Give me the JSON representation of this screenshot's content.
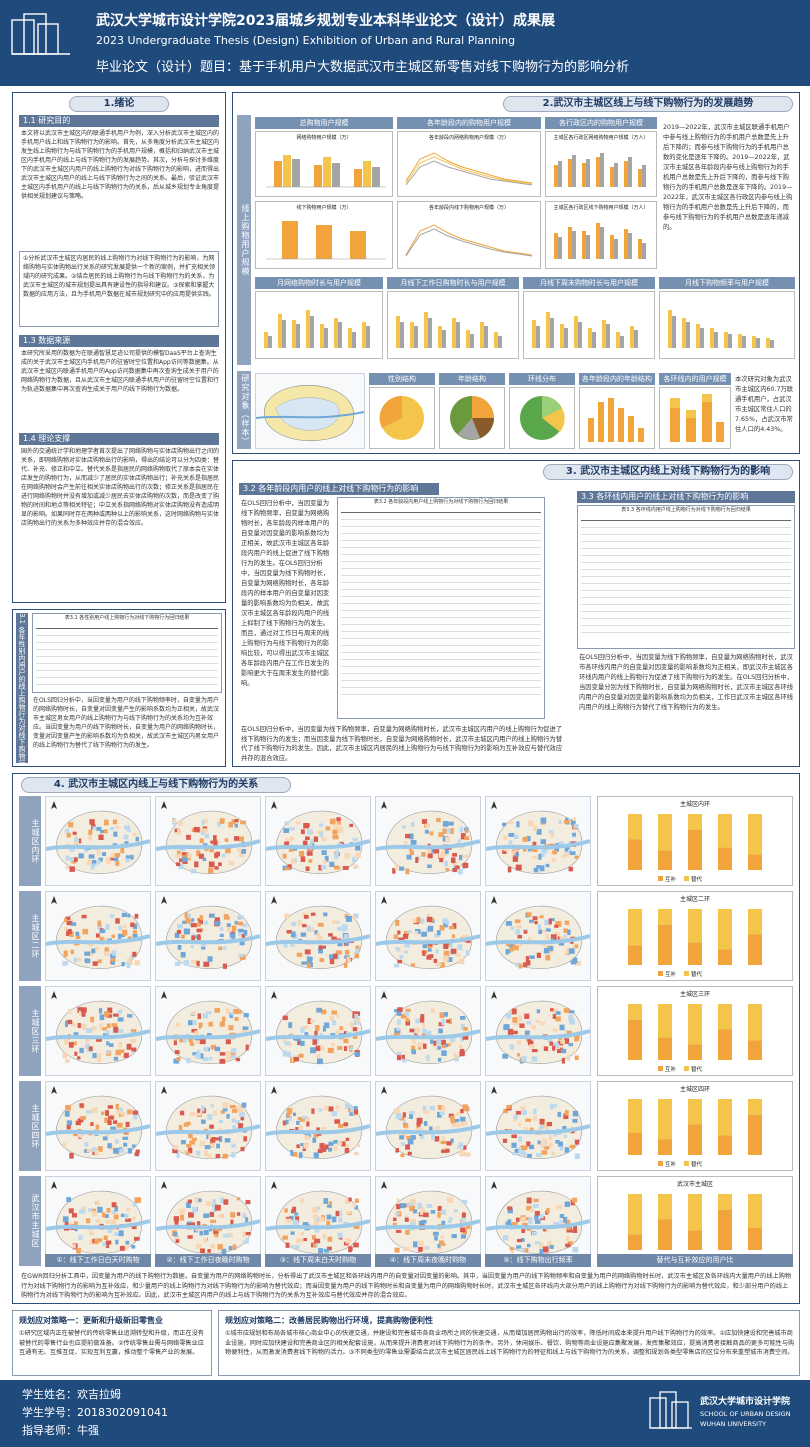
{
  "header": {
    "title": "武汉大学城市设计学院2023届城乡规划专业本科毕业论文（设计）成果展",
    "subtitle": "2023 Undergraduate Thesis (Design) Exhibition of Urban and Rural Planning",
    "topic": "毕业论文（设计）题目：基于手机用户大数据武汉市主城区新零售对线下购物行为的影响分析"
  },
  "s1": {
    "title": "1.绪论",
    "tab_purpose": "1.1 研究目的",
    "purpose_text": "本文将以武汉市主城区内的联通手机用户为例，深入分析武汉市主城区内的手机用户线上和线下购物行为的影响。首先，从多角度分析武汉市主城区内发生线上购物行为与线下购物行为的手机用户规模，概括和归纳武汉市主城区内手机用户的线上与线下购物行为的发展趋势。其次，分析与探讨多维度下的武汉市主城区内用户的线上购物行为对线下购物行为的影响，进而得出武汉市主城区内用户的线上与线下购物行为之间的关系。最后，驳证武汉市主城区内手机用户的线上与线下购物行为的关系，后从城乡规划专业角度提供相关规划建议与策略。",
    "purpose_list": "①分析武汉市主城区内居民的线上购物行为对线下购物行为的影响，为网络购物与实体购物出行关系的研究发展提供一个新的案例，并扩充相关领域内的研究成果。②结合居民的线上购物行为与线下购物行为的关系，为武汉市主城区的城市规划提出具有建设性的指导和建议。③探索和掌握大数据的应用方法，且为手机用户数据在城市规划研究中的应用提供实践。",
    "tab_data": "1.3 数据来源",
    "data_text": "本研究所采用的数据为在联通智慧足迹公司提供的模智DaaS平台上查询生成的关于武汉市主城区内手机用户的驻留时空位置和App访问等数据集。从武汉市主城区内联通手机用户的App访问数据集中再次查询生成关于用户的网络购物行为数据，且从武汉市主城区内联通手机用户的驻留时空位置和行为轨迹数据集中再次查询生成关于用户的线下购物行为数据。",
    "tab_theory": "1.4 理论支撑",
    "theory_text": "国外的交通统计学和地理学者首次提出了网络购物与实体店购物出行之间的关系，即网络购物对实体店购物出行的影响，得出的结论可以分为四类：替代、补充、修正和中立。替代关系是指居民的网络购物取代了原本会在实体店发生的购物行为，从而减少了居民的实体店购物出行；补充关系是指居民在网络购物时会产生前往相关实体店购物出行的次数；修正关系是指居民在进行网络购物时并没有增加或减少居民去实体店购物的次数，而是改变了购物的时间和地点等相关特征；中立关系指网络购物对实体店购物没有造成明显的影响。如果同时存在两种或两种以上的影响关系，这时网络购物与实体店购物出行的关系为多种效应并存的混合效应。"
  },
  "s31": {
    "tab": "3.1 各年性别内用户的线上购物行为对线下购物行为的影响",
    "caption": "表3.1 各性别用户线上购物行为对线下购物行为回归结果",
    "text": "在OLS回归分析中，当因变量为用户的线下购物频率时，自变量为用户的网络购物时长，自变量对因变量产生的影响系数均为正相关，故武汉市主城区男女用户的线上购物行为与线下购物行为的关系均为互补效应。当因变量为用户的线下购物时长，自变量为用户的网络购物时长，变量对因变量产生的影响系数均为负相关，故武汉市主城区内男女用户的线上购物行为替代了线下购物行为的发生。"
  },
  "s2": {
    "title": "2.武汉市主城区线上与线下购物行为的发展趋势",
    "vlabel": "线上购物用户规模",
    "chart_heads": [
      "总购物用户规模",
      "各年龄段内的购物用户规模",
      "各行政区内的购物用户规模"
    ],
    "line_heads": [
      "月网络购物时长与用户规模",
      "月线下工作日购物时长与用户规模",
      "月线下周末购物时长与用户规模",
      "月线下购物频率与用户规模"
    ],
    "chart_titles": [
      "网络购物用户规模（万）",
      "各年龄段内网络购物用户规模（万）",
      "主城区各行政区网络购物用户规模（万人）",
      "线下购物用户规模（万）",
      "各年龄段内线下购物用户规模（万）",
      "主城区各行政区线下购物用户规模（万人）"
    ],
    "trend_text": "2019—2022年，武汉市主城区联通手机用户中参与线上购物行为的手机用户总数是先上升后下降的；而参与线下购物行为的手机用户总数的变化是逐年下降的。2019—2022年，武汉市主城区各年龄段内参与线上购物行为的手机用户总数是先上升后下降的，而参与线下购物行为的手机用户总数是逐年下降的。2019—2022年，武汉市主城区各行政区内参与线上购物行为的手机用户总数是先上升后下降的，而参与线下购物行为的手机用户总数是逐年递减的。",
    "sample_vlabel": "研究对象（样本）",
    "sample_heads": [
      "性别结构",
      "年龄结构",
      "环线分布",
      "各年龄段内的年龄结构",
      "各环线内的用户规模"
    ],
    "sample_text": "本次研究对象为武汉市主城区内60.7万联通手机用户，占武汉市主城区常住人口的7.65%，占武汉市常住人口的4.43%。"
  },
  "s3": {
    "title": "3. 武汉市主城区内线上对线下购物行为的影响",
    "tab32": "3.2 各年龄段内用户的线上对线下购物行为的影响",
    "caption32": "表3.2 各年龄段内用户线上购物行为对线下购物行为回归结果",
    "text32": "在OLS回归分析中，当因变量为线下购物频率，自变量为网络购物时长，各年龄段内样本用户的自变量对因变量的影响系数均为正相关，故武汉市主城区各年龄段内用户的线上促进了线下购物行为的发生。在OLS回归分析中，当因变量为线下购物时长，自变量为网络购物时长，各年龄段内的样本用户的自变量对因变量的影响系数均为负相关，故武汉市主城区各年龄段内用户的线上抑制了线下购物行为的发生。而且，通过对工作日与周末的线上购物行为与线下购物行为的影响比较，可以得出武汉市主城区各年龄段内用户在工作日发生的影响更大于在周末发生的替代影响。",
    "tab33": "3.3 各环线内用户的线上对线下购物行为的影响",
    "caption33": "表3.3 各环线内用户线上购物行为对线下购物行为回归结果",
    "text33": "在OLS回归分析中，当因变量为线下购物频率，自变量为网络购物时长，武汉市各环线内用户的自变量对因变量的影响系数均为正相关，即武汉市主城区各环线内用户的线上购物行为促进了线下购物行为的发生。在OLS回归分析中，当因变量分别为线下购物时长，自变量为网络购物时长，武汉市主城区各环线内用户的自变量对因变量的影响系数均为负相关，工作日武汉市主城区各环线内用户的线上购物行为替代了线下购物行为的发生。",
    "text_bottom": "在OLS回归分析中，当因变量为线下购物频率，自变量为网络购物时长，武汉市主城区内用户的线上购物行为促进了线下购物行为的发生；而当因变量为线下购物时长，自变量为网络购物时长，武汉市主城区内用户的线上购物行为替代了线下购物行为的发生。因此，武汉市主城区内居民的线上购物行为与线下购物行为的影响为互补效应与替代效应并存的混合效应。"
  },
  "s4": {
    "title": "4. 武汉市主城区内线上与线下购物行为的关系",
    "row_labels": [
      "主城区内环",
      "主城区二环",
      "主城区三环",
      "主城区四环",
      "武汉市主城区"
    ],
    "bar_titles": [
      "主城区内环",
      "主城区二环",
      "主城区三环",
      "主城区四环",
      "武汉市主城区"
    ],
    "bar_legend": [
      "互补",
      "替代"
    ],
    "foot_labels": [
      "①：线下工作日白天时购物",
      "②：线下工作日夜晚时购物",
      "③：线下周末白天时购物",
      "④：线下周末夜晚时购物",
      "⑤：线下购物出行频率",
      "替代与互补效应的用户比"
    ],
    "text": "在GWR回归分析工具中，因变量为用户的线下购物行为数据，自变量为用户的网络购物时长，分析得出了武汉市主城区和各环线内用户的自变量对因变量的影响。其中，当因变量为用户的线下购物频率和自变量为用户的网络购物时长时，武汉市主城区及各环线内大量用户的线上购物行为对线下购物行为的影响为互补效应，和少量用户的线上购物行为对线下购物行为的影响为替代效应；而当因变量为用户的线下购物时长和自变量为用户的网络购物时长时，武汉市主城区各环线内大部分用户的线上购物行为对线下购物行为的影响为替代效应，和少部分用户的线上购物行为对线下购物行为的影响为互补效应。因此，武汉市主城区内用户的线上与线下购物行为的关系为互补效应与替代效应并存的混合效应。"
  },
  "strategy": {
    "left_head": "规划应对策略一：更新和升级新旧零售业",
    "left_text": "①研究区域内正在被替代的传统零售业追溯转型和升级，而正在没有被替代的零售行业也应提前做准备。②传统零售业需与网络零售业应互通有无、互推互促、实现互利互赢，推动整个零售产业的发展。",
    "right_head": "规划应对策略二：改善居民购物出行环境，提高购物便利性",
    "right_text": "①城市应规划和布局各城市核心商业中心的快速交通，并建设和完善城市各商业场所之间的快速交通，从而增加居民购物出行的效率，降低时间成本来提升用户线下购物行为的效率。②应加快建设和完善城市商业设施，同时应加快建设和完善商业区的相关配套设施，从而来提升消费者对线下购物行为的条件。另外，休闲娱乐、餐饮、购物等商业设施应集聚发展，发挥集聚效应，提高消费者接触商品的更多可能性与购物便利性，从而激发消费者线下购物的活力。③不同类型的零售业需要结合武汉市主城区居民线上线下购物行为的特征和线上与线下购物行为的关系，调整和规划各类型零售店的区位分布来重塑城市消费空间。"
  },
  "footer": {
    "student_name": "学生姓名：欢吉拉姆",
    "student_id": "学生学号：2018302091041",
    "advisor": "指导老师：牛强",
    "uni_cn": "武汉大学城市设计学院",
    "uni_en1": "SCHOOL OF URBAN DESIGN",
    "uni_en2": "WUHAN UNIVERSITY"
  },
  "colors": {
    "navy": "#1f4a7c",
    "bar_blue": "#6d8fc4",
    "bar_orange": "#f0a43a",
    "bar_yellow": "#f3c64b",
    "bar_gray": "#a5a5a5",
    "map_blue": "#9dc9e8",
    "map_red": "#d95a4e",
    "map_orange": "#f2a35e"
  }
}
